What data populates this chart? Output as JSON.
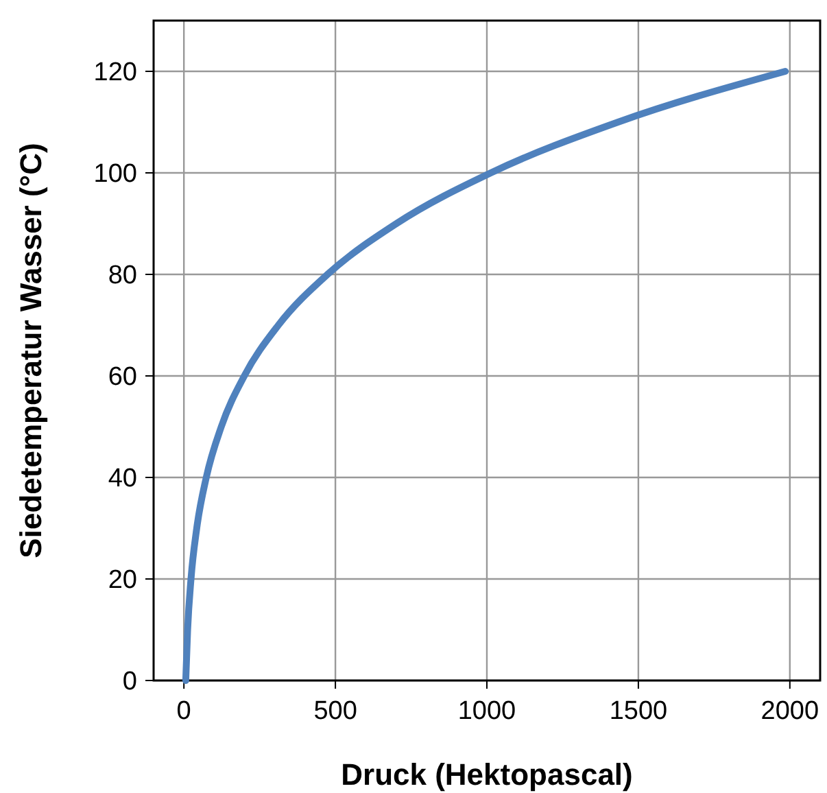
{
  "chart_data": {
    "type": "line",
    "xlabel": "Druck (Hektopascal)",
    "ylabel": "Siedetemperatur Wasser (°C)",
    "x": [
      6.1,
      12.3,
      23.4,
      42.4,
      73.8,
      123.4,
      199.4,
      311.8,
      473.9,
      701.1,
      1013,
      1433,
      1985
    ],
    "series": [
      {
        "color": "#4f81bd",
        "values": [
          0,
          10,
          20,
          30,
          40,
          50,
          60,
          70,
          80,
          90,
          100,
          110,
          120
        ]
      }
    ],
    "xlim": [
      -100,
      2100
    ],
    "ylim": [
      0,
      130
    ],
    "xticks": [
      0,
      500,
      1000,
      1500,
      2000
    ],
    "yticks": [
      0,
      20,
      40,
      60,
      80,
      100,
      120
    ],
    "grid": true,
    "marker": "none",
    "line_style": "solid"
  }
}
